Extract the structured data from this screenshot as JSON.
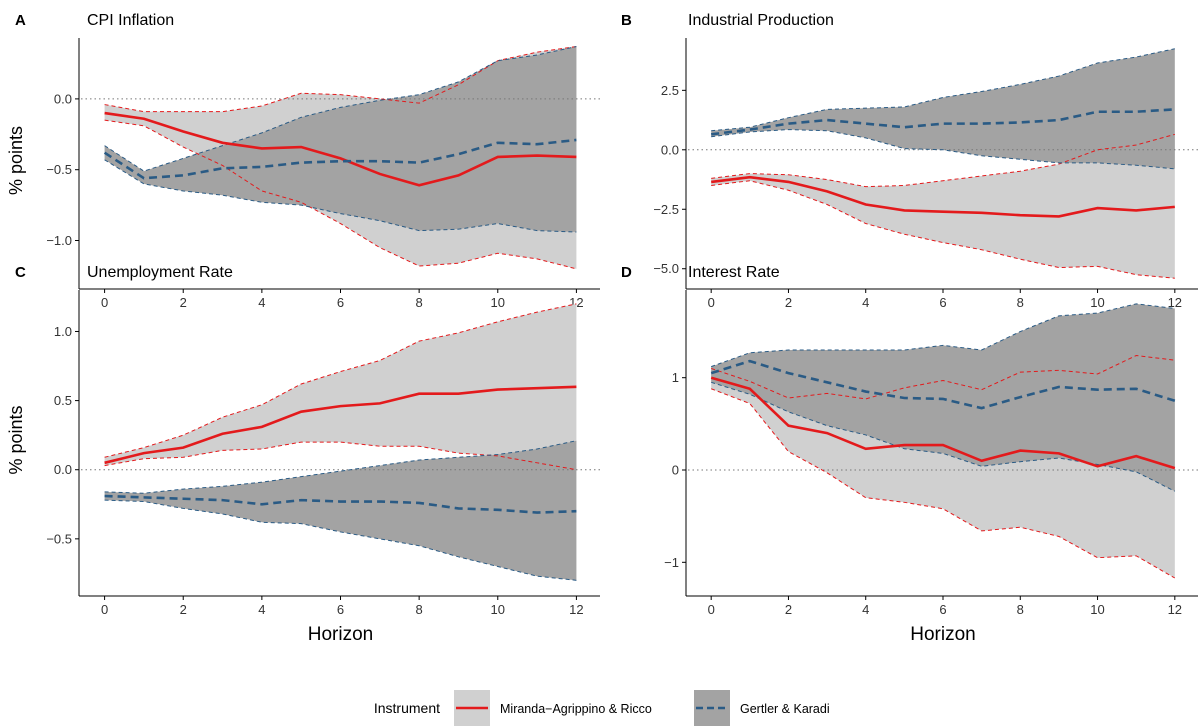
{
  "colors": {
    "mar_line": "#e31a1c",
    "mar_band": "#d0d0d0",
    "gk_line": "#2a5b85",
    "gk_band": "#a3a3a3",
    "axis": "#000000",
    "zero_line": "#777777"
  },
  "legend": {
    "title": "Instrument",
    "items": [
      {
        "key": "mar",
        "label": "Miranda−Agrippino & Ricco"
      },
      {
        "key": "gk",
        "label": "Gertler & Karadi"
      }
    ]
  },
  "chart_data": [
    {
      "panel": "A",
      "type": "line",
      "title": "CPI Inflation",
      "xlabel": "",
      "ylabel": "% points",
      "x": [
        0,
        1,
        2,
        3,
        4,
        5,
        6,
        7,
        8,
        9,
        10,
        11,
        12
      ],
      "xlim": [
        -0.6,
        12.6
      ],
      "xticks": [
        0,
        2,
        4,
        6,
        8,
        10,
        12
      ],
      "ylim": [
        -1.3,
        0.43
      ],
      "yticks": [
        -1.0,
        -0.5,
        0.0
      ],
      "ytick_labels": [
        "−1.0",
        "−0.5",
        "0.0"
      ],
      "series": [
        {
          "key": "mar",
          "name": "Miranda−Agrippino & Ricco",
          "values": [
            -0.1,
            -0.14,
            -0.23,
            -0.31,
            -0.35,
            -0.34,
            -0.42,
            -0.53,
            -0.61,
            -0.54,
            -0.41,
            -0.4,
            -0.41
          ],
          "lower": [
            -0.15,
            -0.19,
            -0.34,
            -0.47,
            -0.65,
            -0.73,
            -0.88,
            -1.05,
            -1.18,
            -1.16,
            -1.09,
            -1.13,
            -1.2
          ],
          "upper": [
            -0.04,
            -0.09,
            -0.09,
            -0.09,
            -0.05,
            0.04,
            0.03,
            0.0,
            -0.03,
            0.1,
            0.27,
            0.33,
            0.37
          ]
        },
        {
          "key": "gk",
          "name": "Gertler & Karadi",
          "values": [
            -0.38,
            -0.56,
            -0.54,
            -0.49,
            -0.48,
            -0.45,
            -0.44,
            -0.44,
            -0.45,
            -0.39,
            -0.31,
            -0.32,
            -0.29
          ],
          "lower": [
            -0.43,
            -0.6,
            -0.65,
            -0.68,
            -0.73,
            -0.75,
            -0.81,
            -0.86,
            -0.93,
            -0.92,
            -0.88,
            -0.93,
            -0.94
          ],
          "upper": [
            -0.33,
            -0.51,
            -0.42,
            -0.33,
            -0.24,
            -0.13,
            -0.06,
            -0.01,
            0.03,
            0.12,
            0.27,
            0.31,
            0.37
          ]
        }
      ]
    },
    {
      "panel": "B",
      "type": "line",
      "title": "Industrial Production",
      "xlabel": "",
      "ylabel": "",
      "x": [
        0,
        1,
        2,
        3,
        4,
        5,
        6,
        7,
        8,
        9,
        10,
        11,
        12
      ],
      "xlim": [
        -0.6,
        12.6
      ],
      "xticks": [
        0,
        2,
        4,
        6,
        8,
        10,
        12
      ],
      "ylim": [
        -5.6,
        4.7
      ],
      "yticks": [
        -5.0,
        -2.5,
        0.0,
        2.5
      ],
      "ytick_labels": [
        "−5.0",
        "−2.5",
        "0.0",
        "2.5"
      ],
      "series": [
        {
          "key": "mar",
          "name": "Miranda−Agrippino & Ricco",
          "values": [
            -1.35,
            -1.15,
            -1.35,
            -1.75,
            -2.3,
            -2.55,
            -2.6,
            -2.65,
            -2.75,
            -2.8,
            -2.45,
            -2.55,
            -2.4
          ],
          "lower": [
            -1.5,
            -1.3,
            -1.7,
            -2.3,
            -3.1,
            -3.55,
            -3.9,
            -4.2,
            -4.6,
            -4.95,
            -4.9,
            -5.25,
            -5.4
          ],
          "upper": [
            -1.2,
            -1.0,
            -1.05,
            -1.25,
            -1.55,
            -1.5,
            -1.3,
            -1.1,
            -0.9,
            -0.6,
            0.0,
            0.2,
            0.65
          ]
        },
        {
          "key": "gk",
          "name": "Gertler & Karadi",
          "values": [
            0.65,
            0.85,
            1.1,
            1.25,
            1.1,
            0.95,
            1.1,
            1.1,
            1.15,
            1.25,
            1.6,
            1.6,
            1.7
          ],
          "lower": [
            0.55,
            0.75,
            0.85,
            0.8,
            0.5,
            0.05,
            0.0,
            -0.25,
            -0.4,
            -0.55,
            -0.55,
            -0.65,
            -0.8
          ],
          "upper": [
            0.8,
            0.95,
            1.35,
            1.7,
            1.75,
            1.8,
            2.2,
            2.45,
            2.75,
            3.1,
            3.65,
            3.9,
            4.25
          ]
        }
      ]
    },
    {
      "panel": "C",
      "type": "line",
      "title": "Unemployment Rate",
      "xlabel": "Horizon",
      "ylabel": "% points",
      "x": [
        0,
        1,
        2,
        3,
        4,
        5,
        6,
        7,
        8,
        9,
        10,
        11,
        12
      ],
      "xlim": [
        -0.6,
        12.6
      ],
      "xticks": [
        0,
        2,
        4,
        6,
        8,
        10,
        12
      ],
      "ylim": [
        -0.87,
        1.3
      ],
      "yticks": [
        -0.5,
        0.0,
        0.5,
        1.0
      ],
      "ytick_labels": [
        "−0.5",
        "0.0",
        "0.5",
        "1.0"
      ],
      "series": [
        {
          "key": "mar",
          "name": "Miranda−Agrippino & Ricco",
          "values": [
            0.05,
            0.12,
            0.16,
            0.26,
            0.31,
            0.42,
            0.46,
            0.48,
            0.55,
            0.55,
            0.58,
            0.59,
            0.6
          ],
          "lower": [
            0.03,
            0.08,
            0.09,
            0.14,
            0.15,
            0.2,
            0.2,
            0.17,
            0.17,
            0.12,
            0.1,
            0.05,
            0.0
          ],
          "upper": [
            0.09,
            0.16,
            0.25,
            0.38,
            0.47,
            0.62,
            0.71,
            0.79,
            0.93,
            0.99,
            1.07,
            1.14,
            1.2
          ]
        },
        {
          "key": "gk",
          "name": "Gertler & Karadi",
          "values": [
            -0.19,
            -0.2,
            -0.21,
            -0.22,
            -0.25,
            -0.22,
            -0.23,
            -0.23,
            -0.24,
            -0.28,
            -0.29,
            -0.31,
            -0.3
          ],
          "lower": [
            -0.22,
            -0.23,
            -0.28,
            -0.32,
            -0.38,
            -0.39,
            -0.45,
            -0.5,
            -0.55,
            -0.63,
            -0.7,
            -0.77,
            -0.8
          ],
          "upper": [
            -0.16,
            -0.17,
            -0.14,
            -0.12,
            -0.09,
            -0.05,
            -0.01,
            0.03,
            0.07,
            0.09,
            0.11,
            0.15,
            0.21
          ]
        }
      ]
    },
    {
      "panel": "D",
      "type": "line",
      "title": "Interest Rate",
      "xlabel": "Horizon",
      "ylabel": "",
      "x": [
        0,
        1,
        2,
        3,
        4,
        5,
        6,
        7,
        8,
        9,
        10,
        11,
        12
      ],
      "xlim": [
        -0.6,
        12.6
      ],
      "xticks": [
        0,
        2,
        4,
        6,
        8,
        10,
        12
      ],
      "ylim": [
        -1.3,
        1.95
      ],
      "yticks": [
        -1,
        0,
        1
      ],
      "ytick_labels": [
        "−1",
        "0",
        "1"
      ],
      "series": [
        {
          "key": "mar",
          "name": "Miranda−Agrippino & Ricco",
          "values": [
            1.0,
            0.88,
            0.48,
            0.4,
            0.23,
            0.27,
            0.27,
            0.1,
            0.21,
            0.18,
            0.04,
            0.15,
            0.02
          ],
          "lower": [
            0.88,
            0.72,
            0.2,
            -0.03,
            -0.3,
            -0.35,
            -0.42,
            -0.66,
            -0.62,
            -0.72,
            -0.95,
            -0.93,
            -1.17
          ],
          "upper": [
            1.1,
            0.96,
            0.78,
            0.83,
            0.77,
            0.89,
            0.97,
            0.87,
            1.06,
            1.08,
            1.04,
            1.24,
            1.19
          ]
        },
        {
          "key": "gk",
          "name": "Gertler & Karadi",
          "values": [
            1.05,
            1.18,
            1.05,
            0.95,
            0.85,
            0.78,
            0.77,
            0.67,
            0.79,
            0.9,
            0.87,
            0.88,
            0.75
          ],
          "lower": [
            0.95,
            0.82,
            0.63,
            0.48,
            0.38,
            0.23,
            0.18,
            0.04,
            0.09,
            0.13,
            0.06,
            -0.02,
            -0.23
          ],
          "upper": [
            1.12,
            1.27,
            1.3,
            1.3,
            1.3,
            1.3,
            1.35,
            1.3,
            1.5,
            1.67,
            1.7,
            1.8,
            1.75
          ]
        }
      ]
    }
  ]
}
